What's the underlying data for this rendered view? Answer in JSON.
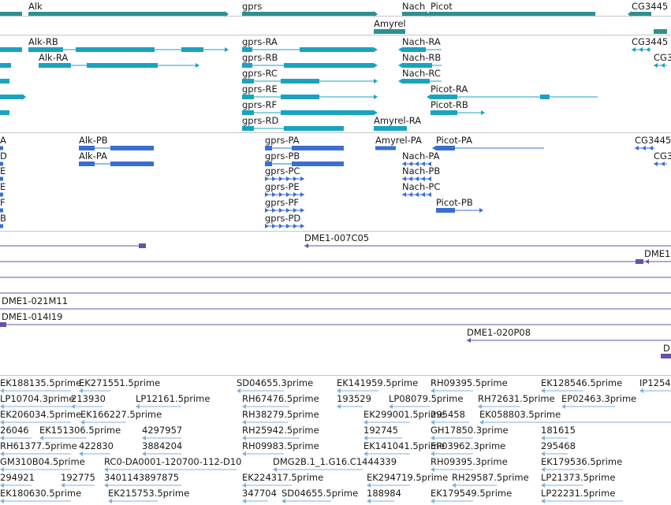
{
  "colors": {
    "gene": "#2f8f8f",
    "transcript": "#1aa3bf",
    "protein": "#3a6fd0",
    "clone": "#6a4fa8",
    "est": "#7fb2dc",
    "separator": "#c6c6c6"
  },
  "tracks": {
    "genes": {
      "items": [
        {
          "id": "alk",
          "label": "Alk"
        },
        {
          "id": "gprs",
          "label": "gprs"
        },
        {
          "id": "nach",
          "label": "Nach"
        },
        {
          "id": "picot",
          "label": "Picot"
        },
        {
          "id": "cg3445",
          "label": "CG3445"
        },
        {
          "id": "amyrel",
          "label": "Amyrel"
        }
      ]
    },
    "transcripts": {
      "items": [
        {
          "id": "alk-rb",
          "label": "Alk-RB"
        },
        {
          "id": "alk-ra",
          "label": "Alk-RA"
        },
        {
          "id": "gprs-ra",
          "label": "gprs-RA"
        },
        {
          "id": "gprs-rb",
          "label": "gprs-RB"
        },
        {
          "id": "gprs-rc",
          "label": "gprs-RC"
        },
        {
          "id": "gprs-re",
          "label": "gprs-RE"
        },
        {
          "id": "gprs-rf",
          "label": "gprs-RF"
        },
        {
          "id": "gprs-rd",
          "label": "gprs-RD"
        },
        {
          "id": "nach-ra",
          "label": "Nach-RA"
        },
        {
          "id": "nach-rb",
          "label": "Nach-RB"
        },
        {
          "id": "nach-rc",
          "label": "Nach-RC"
        },
        {
          "id": "picot-ra",
          "label": "Picot-RA"
        },
        {
          "id": "picot-rb",
          "label": "Picot-RB"
        },
        {
          "id": "amyrel-ra",
          "label": "Amyrel-RA"
        },
        {
          "id": "cg3445-r1",
          "label": "CG3445"
        },
        {
          "id": "cg3445-r2",
          "label": "CG3"
        }
      ]
    },
    "proteins": {
      "items": [
        {
          "id": "alk-pb",
          "label": "Alk-PB"
        },
        {
          "id": "alk-pa",
          "label": "Alk-PA"
        },
        {
          "id": "gprs-pa",
          "label": "gprs-PA"
        },
        {
          "id": "gprs-pb",
          "label": "gprs-PB"
        },
        {
          "id": "gprs-pc",
          "label": "gprs-PC"
        },
        {
          "id": "gprs-pe",
          "label": "gprs-PE"
        },
        {
          "id": "gprs-pf",
          "label": "gprs-PF"
        },
        {
          "id": "gprs-pd",
          "label": "gprs-PD"
        },
        {
          "id": "amyrel-pa",
          "label": "Amyrel-PA"
        },
        {
          "id": "nach-pa",
          "label": "Nach-PA"
        },
        {
          "id": "nach-pb",
          "label": "Nach-PB"
        },
        {
          "id": "nach-pc",
          "label": "Nach-PC"
        },
        {
          "id": "picot-pa",
          "label": "Picot-PA"
        },
        {
          "id": "picot-pb",
          "label": "Picot-PB"
        },
        {
          "id": "cg3445-p1",
          "label": "CG3445"
        },
        {
          "id": "cg3445-p2",
          "label": "CG3"
        },
        {
          "id": "edge-a",
          "label": "A"
        },
        {
          "id": "edge-d",
          "label": "D"
        },
        {
          "id": "edge-e1",
          "label": "E"
        },
        {
          "id": "edge-e2",
          "label": "E"
        },
        {
          "id": "edge-f",
          "label": "F"
        },
        {
          "id": "edge-b",
          "label": "B"
        }
      ]
    },
    "clones": {
      "items": [
        {
          "id": "dme1-007c05",
          "label": "DME1-007C05"
        },
        {
          "id": "dme1-edge",
          "label": "DME1"
        },
        {
          "id": "dme1-021m11",
          "label": "DME1-021M11"
        },
        {
          "id": "dme1-014i19",
          "label": "DME1-014I19"
        },
        {
          "id": "dme1-020p08",
          "label": "DME1-020P08"
        },
        {
          "id": "dme-edge-d",
          "label": "D"
        }
      ]
    },
    "ests": {
      "items": [
        {
          "id": "e1",
          "label": "EK188135.5prime"
        },
        {
          "id": "e2",
          "label": "EK271551.5prime"
        },
        {
          "id": "e3",
          "label": "SD04655.3prime"
        },
        {
          "id": "e4",
          "label": "EK141959.5prime"
        },
        {
          "id": "e5",
          "label": "RH09395.5prime"
        },
        {
          "id": "e6",
          "label": "EK128546.5prime"
        },
        {
          "id": "e7",
          "label": "IP1254"
        },
        {
          "id": "e8",
          "label": "LP10704.3prime"
        },
        {
          "id": "e9",
          "label": "213930"
        },
        {
          "id": "e10",
          "label": "LP12161.5prime"
        },
        {
          "id": "e11",
          "label": "RH67476.5prime"
        },
        {
          "id": "e12",
          "label": "193529"
        },
        {
          "id": "e13",
          "label": "LP08079.5prime"
        },
        {
          "id": "e14",
          "label": "RH72631.5prime"
        },
        {
          "id": "e15",
          "label": "EP02463.3prime"
        },
        {
          "id": "e16",
          "label": "EK206034.5prime"
        },
        {
          "id": "e17",
          "label": "EK166227.5prime"
        },
        {
          "id": "e18",
          "label": "RH38279.5prime"
        },
        {
          "id": "e19",
          "label": "EK299001.5prime"
        },
        {
          "id": "e20",
          "label": "295458"
        },
        {
          "id": "e21",
          "label": "EK058803.5prime"
        },
        {
          "id": "e22",
          "label": "26046"
        },
        {
          "id": "e23",
          "label": "EK151306.5prime"
        },
        {
          "id": "e24",
          "label": "4297957"
        },
        {
          "id": "e25",
          "label": "RH25942.5prime"
        },
        {
          "id": "e26",
          "label": "192745"
        },
        {
          "id": "e27",
          "label": "GH17850.3prime"
        },
        {
          "id": "e28",
          "label": "181615"
        },
        {
          "id": "e29",
          "label": "RH61377.5prime"
        },
        {
          "id": "e30",
          "label": "422830"
        },
        {
          "id": "e31",
          "label": "3884204"
        },
        {
          "id": "e32",
          "label": "RH09983.5prime"
        },
        {
          "id": "e33",
          "label": "EK141041.5prime"
        },
        {
          "id": "e34",
          "label": "EP03962.3prime"
        },
        {
          "id": "e35",
          "label": "295468"
        },
        {
          "id": "e36",
          "label": "GM310B04.5prime"
        },
        {
          "id": "e37",
          "label": "RC0-DA0001-120700-112-D10"
        },
        {
          "id": "e38",
          "label": "DMG2B.1_1.G16.C1444339"
        },
        {
          "id": "e39",
          "label": "RH09395.3prime"
        },
        {
          "id": "e40",
          "label": "EK179536.5prime"
        },
        {
          "id": "e41",
          "label": "294921"
        },
        {
          "id": "e42",
          "label": "192775"
        },
        {
          "id": "e43",
          "label": "3401143897875"
        },
        {
          "id": "e44",
          "label": "EK224317.5prime"
        },
        {
          "id": "e45",
          "label": "EK294719.5prime"
        },
        {
          "id": "e46",
          "label": "RH29587.5prime"
        },
        {
          "id": "e47",
          "label": "LP21373.5prime"
        },
        {
          "id": "e48",
          "label": "EK180630.5prime"
        },
        {
          "id": "e49",
          "label": "EK215753.5prime"
        },
        {
          "id": "e50",
          "label": "347704"
        },
        {
          "id": "e51",
          "label": "SD04655.5prime"
        },
        {
          "id": "e52",
          "label": "188984"
        },
        {
          "id": "e53",
          "label": "EK179549.5prime"
        },
        {
          "id": "e54",
          "label": "LP22231.5prime"
        }
      ]
    }
  }
}
